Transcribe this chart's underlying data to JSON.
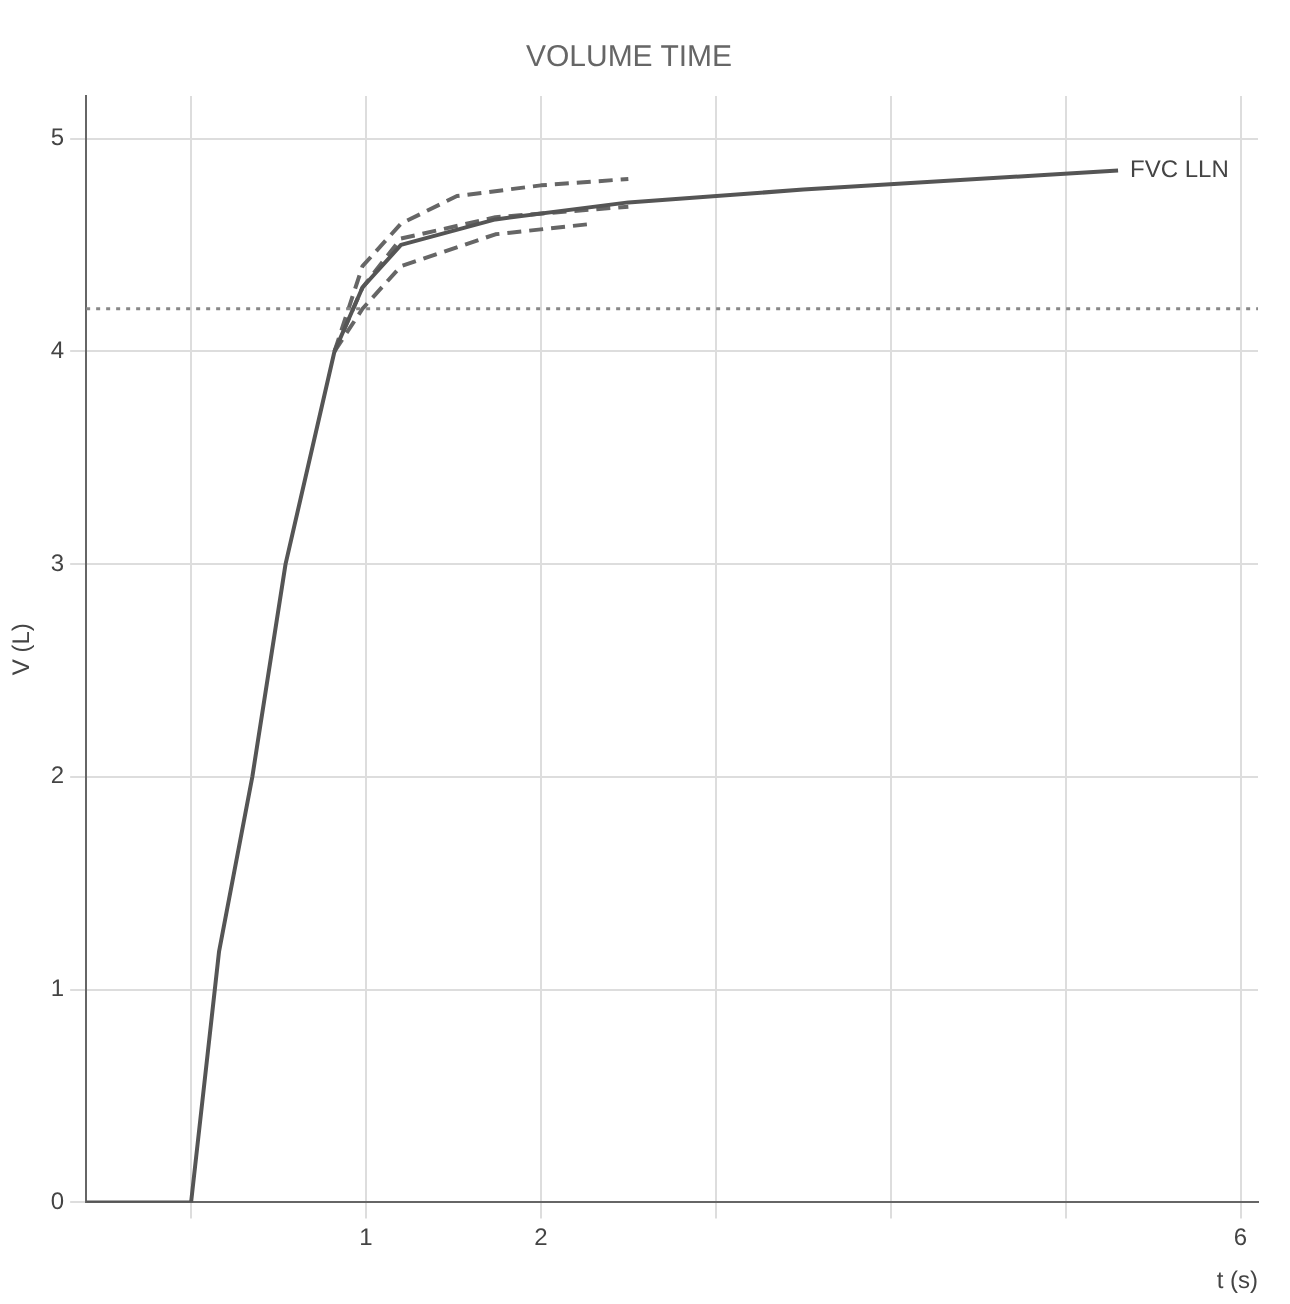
{
  "chart_data": {
    "type": "line",
    "title": "VOLUME TIME",
    "xlabel": "t (s)",
    "ylabel": "V (L)",
    "xlim": [
      -0.6,
      6.1
    ],
    "ylim": [
      0,
      5.2
    ],
    "xticks": [
      {
        "value": 0,
        "label": null
      },
      1,
      2,
      {
        "value": 3,
        "label": null
      },
      {
        "value": 4,
        "label": null
      },
      {
        "value": 5,
        "label": null
      },
      6
    ],
    "yticks": [
      0,
      1,
      2,
      3,
      4,
      5
    ],
    "grid": true,
    "legend": false,
    "marker": "none",
    "series": [
      {
        "color": "#555555",
        "line_style": "solid",
        "x": [
          -0.6,
          0,
          0.16,
          0.35,
          0.54,
          0.82,
          0.98,
          1.2,
          1.74,
          2.5,
          3.5,
          4.9,
          5.3
        ],
        "values": [
          0,
          0,
          1.18,
          2,
          3,
          4,
          4.3,
          4.5,
          4.62,
          4.7,
          4.76,
          4.83,
          4.85
        ]
      },
      {
        "color": "#666666",
        "line_style": "dashed",
        "x": [
          0.82,
          0.98,
          1.2,
          1.52,
          2,
          2.5
        ],
        "values": [
          4,
          4.4,
          4.6,
          4.73,
          4.78,
          4.81
        ]
      },
      {
        "color": "#666666",
        "line_style": "dashed",
        "x": [
          0.82,
          0.98,
          1.2,
          1.74,
          2.5
        ],
        "values": [
          4,
          4.3,
          4.53,
          4.63,
          4.68
        ]
      },
      {
        "color": "#666666",
        "line_style": "dashed",
        "x": [
          0.82,
          0.98,
          1.2,
          1.74,
          2.3
        ],
        "values": [
          4,
          4.2,
          4.4,
          4.55,
          4.6
        ]
      }
    ],
    "ref_lines": [
      {
        "axis": "y",
        "value": 4.2,
        "color": "#888888",
        "line_style": "dotted"
      }
    ],
    "annotations": [
      {
        "text": "FVC LLN",
        "x": 5.3,
        "y": 4.85
      }
    ]
  }
}
